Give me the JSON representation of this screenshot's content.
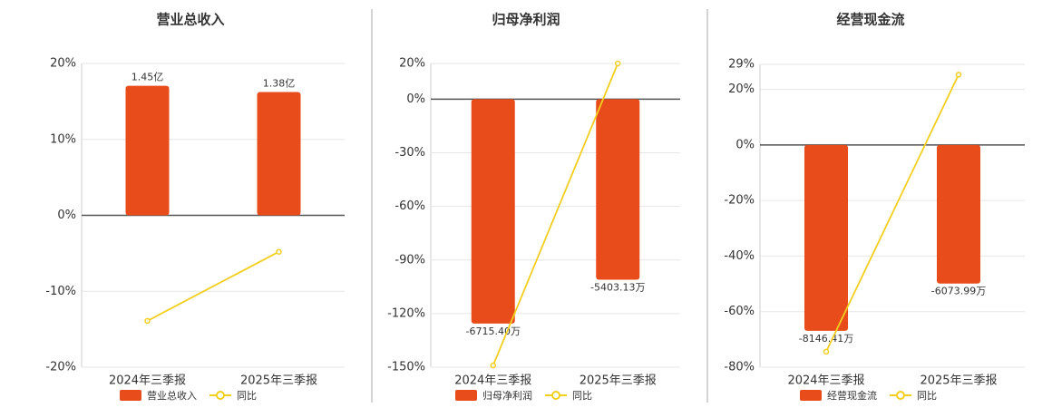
{
  "chart_data": [
    {
      "type": "bar",
      "title": "营业总收入",
      "categories": [
        "2024年三季报",
        "2025年三季报"
      ],
      "series": [
        {
          "name": "营业总收入",
          "type": "bar",
          "axis": "y2",
          "color": "#e84c1b",
          "values": [
            145000000,
            138000000
          ],
          "value_labels": [
            "1.45亿",
            "1.38亿"
          ]
        },
        {
          "name": "同比",
          "type": "line",
          "color": "#f2cf1f",
          "values": [
            -13.9,
            -4.8
          ]
        }
      ],
      "ylim": [
        -20,
        20
      ],
      "yticks": [
        {
          "value": 20,
          "label": "20%"
        },
        {
          "value": 10,
          "label": "10%"
        },
        {
          "value": 0,
          "label": "0%"
        },
        {
          "value": -10,
          "label": "-10%"
        },
        {
          "value": -20,
          "label": "-20%"
        }
      ],
      "y2lim": [
        -170000000,
        170000000
      ],
      "grid": true
    },
    {
      "type": "bar",
      "title": "归母净利润",
      "categories": [
        "2024年三季报",
        "2025年三季报"
      ],
      "series": [
        {
          "name": "归母净利润",
          "type": "bar",
          "axis": "y2",
          "color": "#e84c1b",
          "values": [
            -67154000,
            -54031300
          ],
          "value_labels": [
            "-6715.40万",
            "-5403.13万"
          ]
        },
        {
          "name": "同比",
          "type": "line",
          "color": "#f2cf1f",
          "values": [
            -149,
            20
          ]
        }
      ],
      "ylim": [
        -150,
        20
      ],
      "yticks": [
        {
          "value": 20,
          "label": "20%"
        },
        {
          "value": 0,
          "label": "0%"
        },
        {
          "value": -30,
          "label": "-30%"
        },
        {
          "value": -60,
          "label": "-60%"
        },
        {
          "value": -90,
          "label": "-90%"
        },
        {
          "value": -120,
          "label": "-120%"
        },
        {
          "value": -150,
          "label": "-150%"
        }
      ],
      "y2lim": [
        -80200000,
        10690000
      ],
      "grid": true
    },
    {
      "type": "bar",
      "title": "经营现金流",
      "categories": [
        "2024年三季报",
        "2025年三季报"
      ],
      "series": [
        {
          "name": "经营现金流",
          "type": "bar",
          "axis": "y2",
          "color": "#e84c1b",
          "values": [
            -81464100,
            -60739900
          ],
          "value_labels": [
            "-8146.41万",
            "-6073.99万"
          ]
        },
        {
          "name": "同比",
          "type": "line",
          "color": "#f2cf1f",
          "values": [
            -74.4,
            25.3
          ]
        }
      ],
      "ylim": [
        -80,
        29
      ],
      "yticks": [
        {
          "value": 29,
          "label": "29%"
        },
        {
          "value": 20,
          "label": "20%"
        },
        {
          "value": 0,
          "label": "0%"
        },
        {
          "value": -20,
          "label": "-20%"
        },
        {
          "value": -40,
          "label": "-40%"
        },
        {
          "value": -60,
          "label": "-60%"
        },
        {
          "value": -80,
          "label": "-80%"
        }
      ],
      "y2lim": [
        -97410000,
        35310000
      ],
      "grid": true
    }
  ]
}
